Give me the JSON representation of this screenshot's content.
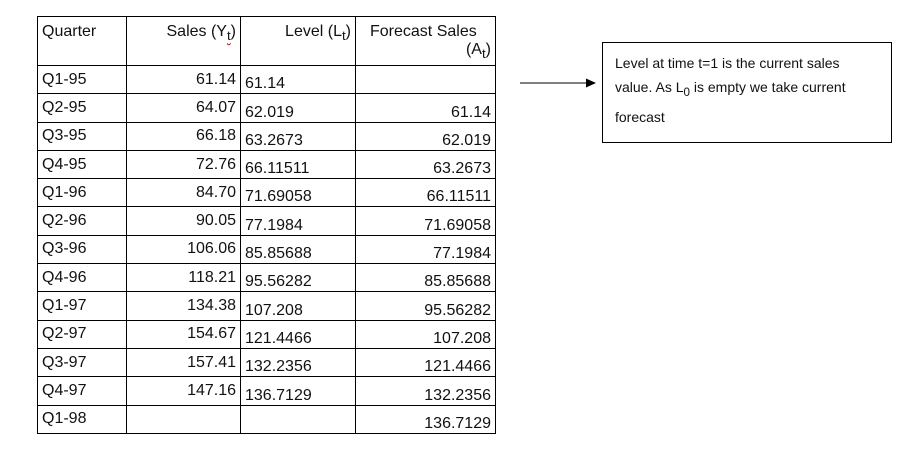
{
  "table": {
    "headers": {
      "quarter": "Quarter",
      "sales": "Sales (Y",
      "sales_sub": "t",
      "sales_close": ")",
      "level": "Level (L",
      "level_sub": "t",
      "level_close": ")",
      "forecast_line1": "Forecast Sales",
      "forecast_line2": "(A",
      "forecast_sub": "t",
      "forecast_close": ")"
    },
    "rows": [
      {
        "quarter": "Q1-95",
        "sales": "61.14",
        "level": "61.14",
        "forecast": ""
      },
      {
        "quarter": "Q2-95",
        "sales": "64.07",
        "level": "62.019",
        "forecast": "61.14"
      },
      {
        "quarter": "Q3-95",
        "sales": "66.18",
        "level": "63.2673",
        "forecast": "62.019"
      },
      {
        "quarter": "Q4-95",
        "sales": "72.76",
        "level": "66.11511",
        "forecast": "63.2673"
      },
      {
        "quarter": "Q1-96",
        "sales": "84.70",
        "level": "71.69058",
        "forecast": "66.11511"
      },
      {
        "quarter": "Q2-96",
        "sales": "90.05",
        "level": "77.1984",
        "forecast": "71.69058"
      },
      {
        "quarter": "Q3-96",
        "sales": "106.06",
        "level": "85.85688",
        "forecast": "77.1984"
      },
      {
        "quarter": "Q4-96",
        "sales": "118.21",
        "level": "95.56282",
        "forecast": "85.85688"
      },
      {
        "quarter": "Q1-97",
        "sales": "134.38",
        "level": "107.208",
        "forecast": "95.56282"
      },
      {
        "quarter": "Q2-97",
        "sales": "154.67",
        "level": "121.4466",
        "forecast": "107.208"
      },
      {
        "quarter": "Q3-97",
        "sales": "157.41",
        "level": "132.2356",
        "forecast": "121.4466"
      },
      {
        "quarter": "Q4-97",
        "sales": "147.16",
        "level": "136.7129",
        "forecast": "132.2356"
      },
      {
        "quarter": "Q1-98",
        "sales": "",
        "level": "",
        "forecast": "136.7129"
      }
    ]
  },
  "note": {
    "text_before_sub": "Level at time t=1 is the current sales value. As L",
    "sub": "0",
    "text_after_sub": " is empty we take current forecast"
  },
  "icons": {
    "pointer": "right-arrow-icon"
  }
}
